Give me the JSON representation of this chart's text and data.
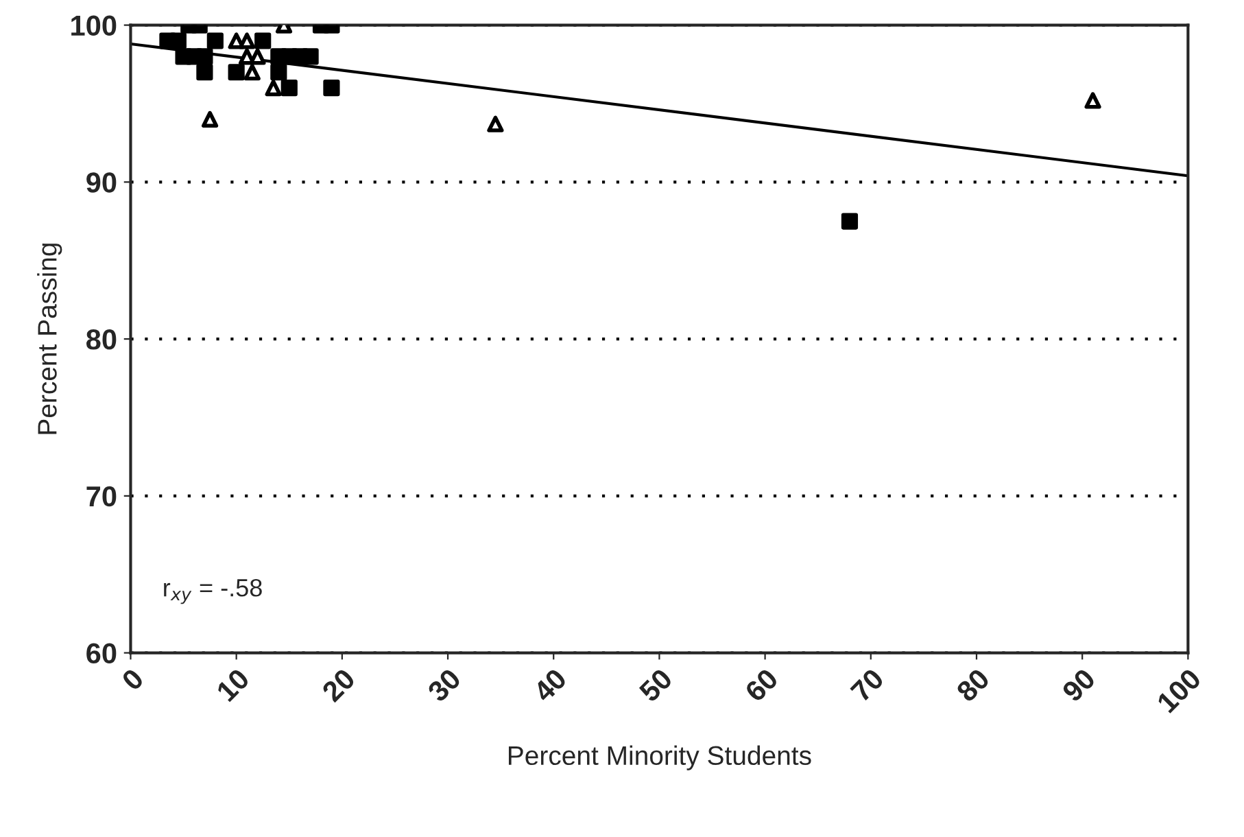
{
  "chart_data": {
    "type": "scatter",
    "xlabel": "Percent Minority Students",
    "ylabel": "Percent Passing",
    "xlim": [
      0,
      100
    ],
    "xticks": [
      0,
      10,
      20,
      30,
      40,
      50,
      60,
      70,
      80,
      90,
      100
    ],
    "ylim": [
      60,
      100
    ],
    "yticks": [
      60,
      70,
      80,
      90,
      100
    ],
    "grid": "y",
    "legend": false,
    "annotations": [
      "r$_{xy}$ = -.58"
    ],
    "series": [
      {
        "marker": "square",
        "color": "#000000",
        "x": [
          3.5,
          4.5,
          5.5,
          6.5,
          5,
          6,
          7,
          7,
          8,
          10,
          12.5,
          14,
          14,
          15,
          16,
          17,
          15,
          19,
          18,
          19,
          68
        ],
        "values": [
          99,
          99,
          100,
          100,
          98,
          98,
          98,
          97,
          99,
          97,
          99,
          97,
          98,
          98,
          98,
          98,
          96,
          96,
          100,
          100,
          87.5
        ]
      },
      {
        "marker": "triangle",
        "color": "#000000",
        "x": [
          7.5,
          10,
          11,
          11,
          11.5,
          14.5,
          13.5,
          34.5,
          91,
          12
        ],
        "values": [
          94,
          99,
          99,
          98,
          97,
          100,
          96,
          93.7,
          95.2,
          98
        ]
      },
      {
        "type": "line",
        "marker": "none",
        "line_style": "solid",
        "color": "#000000",
        "x": [
          0,
          100
        ],
        "values": [
          98.8,
          90.4
        ]
      }
    ]
  }
}
